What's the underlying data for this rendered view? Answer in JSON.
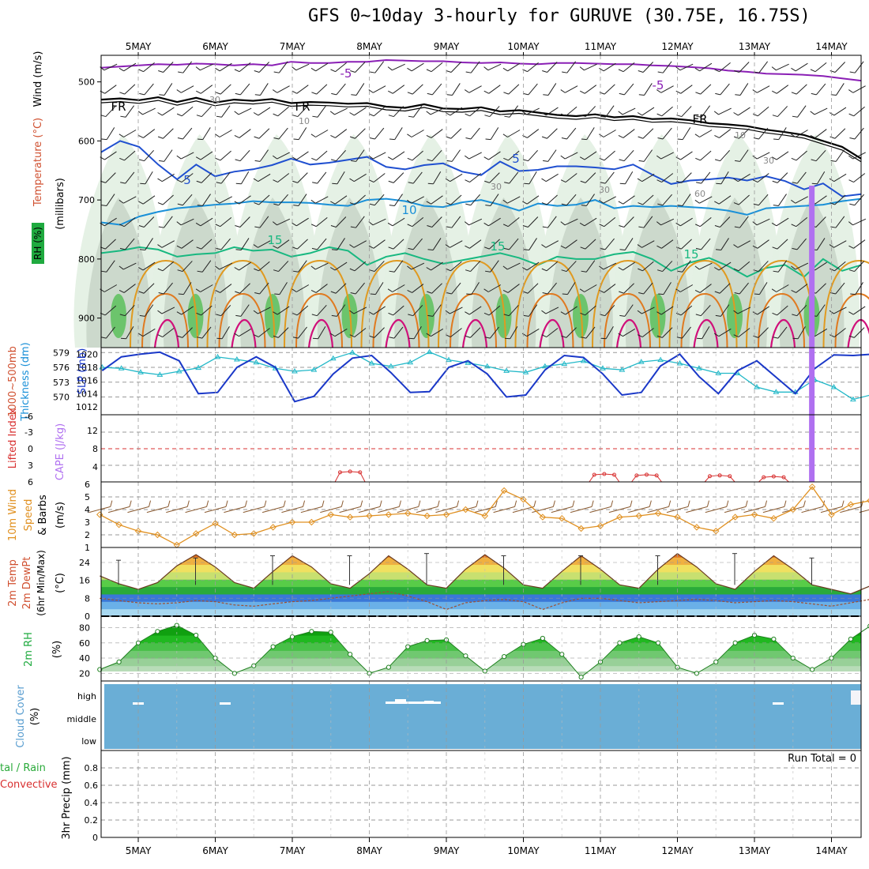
{
  "title": "GFS 0~10day 3-hourly for GURUVE (30.75E, 16.75S)",
  "dates": [
    "5MAY",
    "6MAY",
    "7MAY",
    "8MAY",
    "9MAY",
    "10MAY",
    "11MAY",
    "12MAY",
    "13MAY",
    "14MAY"
  ],
  "colors": {
    "rh": "#1faa3f",
    "temp_purple": "#8a1fb5",
    "temp_blue": "#1f4fd0",
    "temp_cyan": "#1a90d8",
    "temp_green": "#18b880",
    "temp_orange": "#e09a20",
    "temp_magenta": "#d0107a",
    "freezing": "#000000",
    "slp": "#1a38c8",
    "thick": "#22b8c8",
    "li": "#d83030",
    "cape": "#b070f0",
    "wind": "#e09020",
    "cloud": "#6aaed6"
  },
  "chart_data": [
    {
      "panel": "upper-air",
      "type": "heatmap",
      "title": "Temperature (°C) / Wind (m/s) / RH (%)",
      "ylabel": "millibars",
      "yticks": [
        "500",
        "600",
        "700",
        "800",
        "900"
      ],
      "ylim": [
        950,
        455
      ],
      "contour_labels": [
        "-5",
        "-5",
        "FR",
        "FR",
        "FR",
        "5",
        "5",
        "10",
        "15",
        "15",
        "15",
        "30",
        "30",
        "30",
        "30",
        "60",
        "10",
        "10"
      ],
      "isotherms": [
        {
          "label": "-5",
          "p": [
            476,
            474,
            472,
            470,
            471,
            469,
            470,
            472,
            470,
            472,
            466,
            468,
            468,
            466,
            466,
            463,
            464,
            465,
            465,
            467,
            468,
            467,
            469,
            470,
            468,
            468,
            469,
            470,
            470,
            472,
            473,
            475,
            477,
            481,
            483,
            486,
            487,
            488,
            490,
            494,
            498
          ]
        },
        {
          "label": "FR",
          "p": [
            530,
            528,
            531,
            526,
            534,
            527,
            535,
            530,
            532,
            529,
            536,
            534,
            535,
            537,
            536,
            542,
            544,
            538,
            545,
            546,
            543,
            550,
            548,
            552,
            556,
            558,
            555,
            560,
            558,
            563,
            562,
            565,
            570,
            572,
            575,
            581,
            585,
            590,
            600,
            610,
            630
          ]
        },
        {
          "label": "5",
          "p": [
            619,
            600,
            610,
            640,
            665,
            640,
            660,
            652,
            648,
            641,
            630,
            640,
            637,
            632,
            627,
            644,
            648,
            641,
            638,
            652,
            658,
            635,
            651,
            649,
            643,
            643,
            645,
            648,
            640,
            657,
            673,
            667,
            665,
            662,
            667,
            660,
            668,
            682,
            672,
            694,
            690
          ]
        },
        {
          "label": "10",
          "p": [
            738,
            742,
            728,
            720,
            714,
            711,
            708,
            706,
            702,
            704,
            704,
            705,
            708,
            710,
            700,
            698,
            702,
            710,
            712,
            704,
            700,
            708,
            718,
            706,
            710,
            708,
            700,
            714,
            710,
            712,
            710,
            712,
            714,
            718,
            725,
            714,
            712,
            710,
            708,
            702,
            698
          ]
        },
        {
          "label": "15",
          "p": [
            790,
            786,
            780,
            784,
            796,
            792,
            790,
            780,
            786,
            784,
            796,
            790,
            780,
            786,
            810,
            796,
            790,
            800,
            808,
            802,
            796,
            790,
            798,
            810,
            796,
            800,
            800,
            792,
            788,
            800,
            820,
            806,
            798,
            812,
            830,
            815,
            810,
            830,
            800,
            820,
            810
          ]
        }
      ],
      "rh_levels": [
        30,
        60,
        90
      ]
    },
    {
      "panel": "slp-thickness",
      "type": "line",
      "series": [
        {
          "name": "SLP (mb)",
          "axis": "right",
          "values": [
            1017.5,
            1019.6,
            1020.0,
            1020.3,
            1019.0,
            1014.0,
            1014.2,
            1018.0,
            1019.6,
            1018.0,
            1012.8,
            1013.6,
            1017.0,
            1019.4,
            1019.8,
            1017.2,
            1014.2,
            1014.3,
            1018.0,
            1019.0,
            1017.0,
            1013.5,
            1013.8,
            1017.6,
            1019.8,
            1019.5,
            1017.0,
            1013.8,
            1014.2,
            1018.2,
            1020.0,
            1016.6,
            1014.0,
            1017.5,
            1019.0,
            1016.5,
            1014.0,
            1017.8,
            1019.9,
            1019.8,
            1020.0
          ]
        },
        {
          "name": "1000-500mb Thickness (dm)",
          "axis": "left",
          "values": [
            576.0,
            575.8,
            575.0,
            574.5,
            575.2,
            575.9,
            578.1,
            577.6,
            577.0,
            575.8,
            575.2,
            575.5,
            577.8,
            579.0,
            576.8,
            576.2,
            577.0,
            579.1,
            577.5,
            576.9,
            576.2,
            575.3,
            575.0,
            576.2,
            576.7,
            577.3,
            575.8,
            575.5,
            577.1,
            577.5,
            576.8,
            575.8,
            574.8,
            574.8,
            572.0,
            571.0,
            571.0,
            573.5,
            572.0,
            569.5,
            570.5
          ]
        }
      ],
      "ylim_left": [
        568,
        580
      ],
      "ylim_right": [
        1012,
        1021
      ],
      "left_ticks": [
        "579",
        "576",
        "573",
        "570"
      ],
      "right_ticks": [
        "1020",
        "1018",
        "1016",
        "1014",
        "1012"
      ],
      "ylabel_left": "1000~500mb Thickness (dm)",
      "ylabel_right": "SLP (mb)"
    },
    {
      "panel": "li-cape",
      "type": "line",
      "series": [
        {
          "name": "Lifted Index",
          "values": [
            null,
            null,
            null,
            null,
            null,
            null,
            null,
            null,
            null,
            null,
            null,
            null,
            null,
            null,
            null,
            null,
            null,
            null,
            null,
            null,
            null,
            null,
            null,
            null,
            null,
            null,
            null,
            null,
            null,
            null,
            null,
            null,
            null,
            null,
            null,
            null,
            null,
            null,
            null,
            null,
            null
          ]
        },
        {
          "name": "CAPE (J/kg)",
          "values": [
            0,
            0,
            0,
            0,
            0,
            0,
            0,
            0,
            0,
            0,
            0,
            0,
            0,
            0,
            0,
            0,
            0,
            0,
            0,
            0,
            0,
            0,
            0,
            0,
            0,
            0,
            0,
            0,
            0,
            0,
            0,
            0,
            0,
            0,
            0,
            0,
            0,
            60,
            0,
            0,
            0
          ]
        }
      ],
      "li_bumps": [
        {
          "day": 2.75,
          "value": -2.7
        },
        {
          "day": 6.05,
          "value": -2.0
        },
        {
          "day": 6.6,
          "value": -1.8
        },
        {
          "day": 7.55,
          "value": -1.6
        },
        {
          "day": 8.25,
          "value": -1.3
        }
      ],
      "left_ticks": [
        "6",
        "3",
        "0",
        "-3",
        "-6"
      ],
      "right_ticks": [
        "12",
        "8",
        "4"
      ],
      "ylabel_left": "Lifted Index",
      "ylabel_right": "CAPE (J/kg)"
    },
    {
      "panel": "wind",
      "type": "line",
      "series": [
        {
          "name": "10m Wind Speed (m/s)",
          "values": [
            3.6,
            2.8,
            2.3,
            2.0,
            1.2,
            2.1,
            2.9,
            2.0,
            2.1,
            2.6,
            3.0,
            3.0,
            3.6,
            3.4,
            3.5,
            3.6,
            3.7,
            3.5,
            3.6,
            4.0,
            3.5,
            5.5,
            4.8,
            3.4,
            3.3,
            2.5,
            2.7,
            3.4,
            3.5,
            3.7,
            3.4,
            2.6,
            2.3,
            3.4,
            3.6,
            3.3,
            4.0,
            5.8,
            3.6,
            4.4,
            4.7
          ]
        }
      ],
      "ylim": [
        1,
        6
      ],
      "ticks": [
        "6",
        "5",
        "4",
        "3",
        "2",
        "1"
      ],
      "ylabel": "10m Wind Speed & Barbs (m/s)"
    },
    {
      "panel": "temp",
      "type": "area",
      "series": [
        {
          "name": "2m Temp (°C)",
          "values": [
            18,
            14.5,
            12,
            15,
            22.5,
            27.5,
            22,
            15,
            12.5,
            20,
            27,
            22,
            14.5,
            12.5,
            19,
            27,
            21,
            14,
            12.5,
            21,
            27.5,
            21.5,
            14,
            12.5,
            20,
            27,
            21,
            14,
            12.5,
            21,
            28,
            22,
            14.5,
            12,
            20,
            27,
            21,
            14,
            12,
            10,
            13.5
          ]
        },
        {
          "name": "2m DewPt (°C)",
          "values": [
            8,
            7,
            6,
            5.5,
            6,
            7,
            6.5,
            5,
            4.5,
            5.5,
            6.5,
            7,
            8,
            9,
            10,
            11,
            9,
            6.5,
            3,
            6,
            7,
            7.5,
            6.5,
            3,
            6,
            8,
            8,
            7,
            6,
            6.5,
            7,
            7.5,
            7,
            6,
            6.5,
            7,
            6.5,
            5.5,
            4.5,
            6,
            7.5
          ]
        },
        {
          "name": "6hr Max (°C)",
          "values": [
            25,
            26,
            27,
            27,
            28,
            27,
            27,
            27,
            28,
            26
          ]
        }
      ],
      "ylim": [
        0,
        30
      ],
      "ticks": [
        "24",
        "16",
        "8",
        "0"
      ],
      "ylabel": "2m Temp 2m DewPt (6hr Min/Max) (°C)"
    },
    {
      "panel": "rh",
      "type": "area",
      "series": [
        {
          "name": "2m RH (%)",
          "values": [
            25,
            35,
            60,
            75,
            83,
            70,
            40,
            20,
            30,
            55,
            68,
            75,
            74,
            45,
            20,
            28,
            55,
            63,
            64,
            43,
            23,
            42,
            58,
            66,
            45,
            15,
            35,
            60,
            68,
            60,
            28,
            20,
            35,
            60,
            70,
            65,
            40,
            25,
            40,
            65,
            82
          ]
        }
      ],
      "ylim": [
        10,
        95
      ],
      "ticks": [
        "80",
        "60",
        "40",
        "20"
      ],
      "ylabel": "2m RH (%)"
    },
    {
      "panel": "cloud",
      "type": "area",
      "levels": [
        "high",
        "middle",
        "low"
      ],
      "ylabel": "Cloud Cover (%)"
    },
    {
      "panel": "precip",
      "type": "bar",
      "series": [
        {
          "name": "Total / Rain",
          "values": []
        },
        {
          "name": "Convective",
          "values": []
        }
      ],
      "ylim": [
        0,
        1
      ],
      "ticks": [
        "0.8",
        "0.6",
        "0.4",
        "0.2",
        "0"
      ],
      "ylabel": "3hr Precip (mm)",
      "run_total": "Run Total = 0"
    }
  ],
  "labels": {
    "wind_ms": "Wind (m/s)",
    "temp_c": "Temperature (°C)",
    "rh_pct": "RH (%)",
    "millibars": "(millibars)",
    "thickness_1": "1000~500mb",
    "thickness_2": "Thickness (dm)",
    "slp": "SLP (mb)",
    "li": "Lifted Index",
    "cape": "CAPE (J/kg)",
    "wind10_a": "10m Wind",
    "wind10_b": "Speed",
    "wind10_c": "& Barbs",
    "wind10_d": "(m/s)",
    "temp2m_a": "2m Temp",
    "temp2m_b": "2m DewPt",
    "temp2m_c": "(6hr Min/Max)",
    "temp2m_d": "(°C)",
    "rh2m": "2m RH",
    "rh2m_unit": "(%)",
    "cloud": "Cloud Cover",
    "cloud_unit": "(%)",
    "precip_unit": "3hr Precip (mm)",
    "total_rain": "tal / Rain",
    "convective": "Convective",
    "run_total": "Run Total = 0"
  }
}
